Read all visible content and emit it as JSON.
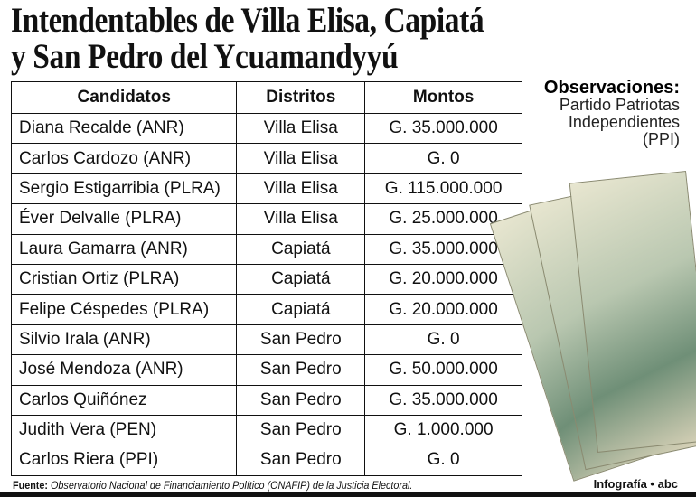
{
  "title": {
    "line1": "Intendentables de Villa Elisa, Capiatá",
    "line2": "y San Pedro del Ycuamandyyú"
  },
  "table": {
    "headers": [
      "Candidatos",
      "Distritos",
      "Montos"
    ],
    "rows": [
      [
        "Diana Recalde (ANR)",
        "Villa Elisa",
        "G. 35.000.000"
      ],
      [
        "Carlos Cardozo (ANR)",
        "Villa Elisa",
        "G. 0"
      ],
      [
        "Sergio Estigarribia (PLRA)",
        "Villa Elisa",
        "G. 115.000.000"
      ],
      [
        "Éver Delvalle (PLRA)",
        "Villa Elisa",
        "G. 25.000.000"
      ],
      [
        "Laura Gamarra (ANR)",
        "Capiatá",
        "G. 35.000.000"
      ],
      [
        "Cristian Ortiz (PLRA)",
        "Capiatá",
        "G. 20.000.000"
      ],
      [
        "Felipe Céspedes (PLRA)",
        "Capiatá",
        "G. 20.000.000"
      ],
      [
        "Silvio Irala (ANR)",
        "San Pedro",
        "G. 0"
      ],
      [
        "José Mendoza (ANR)",
        "San Pedro",
        "G. 50.000.000"
      ],
      [
        "Carlos Quiñónez",
        "San Pedro",
        "G. 35.000.000"
      ],
      [
        "Judith Vera (PEN)",
        "San Pedro",
        "G. 1.000.000"
      ],
      [
        "Carlos Riera (PPI)",
        "San Pedro",
        "G. 0"
      ]
    ]
  },
  "observations": {
    "label": "Observaciones:",
    "text": "Partido Patriotas Independientes (PPI)"
  },
  "footer": {
    "source_label": "Fuente:",
    "source": "Observatorio Nacional de Financiamiento Político (ONAFIP) de la Justicia Electoral.",
    "credit": "Infografía • abc"
  }
}
